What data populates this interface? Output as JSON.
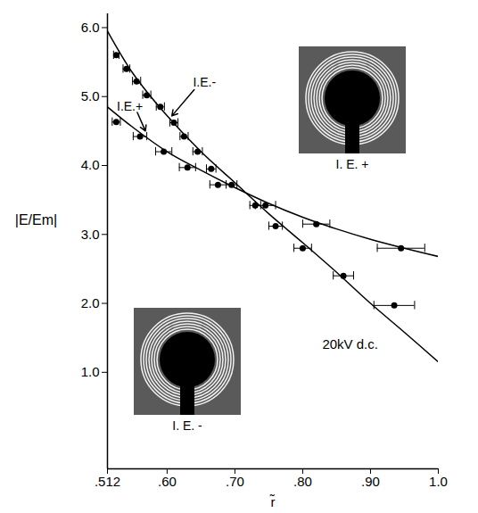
{
  "chart_data": {
    "type": "scatter",
    "x_label": "r̃",
    "y_label": "|E/Em|",
    "xlim": [
      0.512,
      1.0
    ],
    "ylim": [
      -0.4,
      6.2
    ],
    "xticks": [
      {
        "value": 0.512,
        "label": ".512"
      },
      {
        "value": 0.6,
        "label": ".60"
      },
      {
        "value": 0.7,
        "label": ".70"
      },
      {
        "value": 0.8,
        "label": ".80"
      },
      {
        "value": 0.9,
        "label": ".90"
      },
      {
        "value": 1.0,
        "label": "1.0"
      }
    ],
    "yticks": [
      {
        "value": 1,
        "label": "1.0"
      },
      {
        "value": 2,
        "label": "2.0"
      },
      {
        "value": 3,
        "label": "3.0"
      },
      {
        "value": 4,
        "label": "4.0"
      },
      {
        "value": 5,
        "label": "5.0"
      },
      {
        "value": 6,
        "label": "6.0"
      }
    ],
    "grid": false,
    "series": [
      {
        "name": "I.E.-",
        "color": "#000000",
        "marker": "circle",
        "x": [
          0.525,
          0.54,
          0.555,
          0.57,
          0.59,
          0.61,
          0.625,
          0.645,
          0.665,
          0.695,
          0.73,
          0.76,
          0.8,
          0.86,
          0.935
        ],
        "values": [
          5.6,
          5.4,
          5.22,
          5.02,
          4.85,
          4.62,
          4.42,
          4.2,
          3.95,
          3.72,
          3.42,
          3.12,
          2.8,
          2.4,
          1.97
        ],
        "x_errors": [
          0.004,
          0.005,
          0.006,
          0.006,
          0.006,
          0.006,
          0.006,
          0.007,
          0.007,
          0.008,
          0.008,
          0.01,
          0.013,
          0.015,
          0.03
        ]
      },
      {
        "name": "I.E.+",
        "color": "#000000",
        "marker": "circle",
        "x": [
          0.525,
          0.56,
          0.595,
          0.63,
          0.675,
          0.745,
          0.82,
          0.945
        ],
        "values": [
          4.63,
          4.42,
          4.2,
          3.97,
          3.72,
          3.42,
          3.15,
          2.8
        ],
        "x_errors": [
          0.006,
          0.01,
          0.012,
          0.012,
          0.012,
          0.015,
          0.02,
          0.035
        ]
      }
    ],
    "fits": [
      {
        "name": "I.E.-",
        "color": "#000000",
        "line_style": "solid",
        "x": [
          0.512,
          0.55,
          0.6,
          0.65,
          0.7,
          0.75,
          0.8,
          0.85,
          0.9,
          0.95,
          1.0
        ],
        "values": [
          5.95,
          5.33,
          4.72,
          4.2,
          3.75,
          3.3,
          2.88,
          2.45,
          2.0,
          1.58,
          1.15
        ]
      },
      {
        "name": "I.E.+",
        "color": "#000000",
        "line_style": "solid",
        "x": [
          0.512,
          0.55,
          0.6,
          0.65,
          0.7,
          0.75,
          0.8,
          0.85,
          0.9,
          0.95,
          1.0
        ],
        "values": [
          4.85,
          4.55,
          4.2,
          3.93,
          3.68,
          3.45,
          3.25,
          3.08,
          2.93,
          2.8,
          2.68
        ]
      }
    ],
    "annotations": [
      "20kV d.c."
    ],
    "insets": [
      "I. E. +",
      "I. E. -"
    ]
  }
}
